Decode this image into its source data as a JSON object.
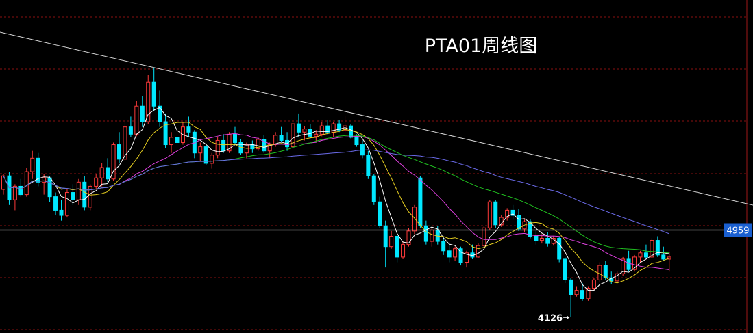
{
  "chart_data": {
    "type": "candlestick",
    "title": "PTA01周线图",
    "up_color": "#ff3a3a",
    "down_color": "#00e8ff",
    "ma_colors": [
      "#ffffff",
      "#e8d020",
      "#e040e0",
      "#20c020",
      "#6a6ae8"
    ],
    "ylim": [
      3970,
      7170
    ],
    "price_line": 4959,
    "low_label": 4126,
    "candles": [
      [
        5350,
        5500,
        5300,
        5480
      ],
      [
        5480,
        5520,
        5200,
        5250
      ],
      [
        5250,
        5400,
        5150,
        5380
      ],
      [
        5380,
        5450,
        5280,
        5300
      ],
      [
        5300,
        5560,
        5280,
        5520
      ],
      [
        5520,
        5720,
        5450,
        5650
      ],
      [
        5650,
        5700,
        5380,
        5420
      ],
      [
        5420,
        5500,
        5300,
        5460
      ],
      [
        5460,
        5480,
        5230,
        5280
      ],
      [
        5280,
        5320,
        5100,
        5150
      ],
      [
        5150,
        5250,
        5050,
        5100
      ],
      [
        5100,
        5350,
        5080,
        5320
      ],
      [
        5320,
        5400,
        5200,
        5250
      ],
      [
        5250,
        5450,
        5200,
        5420
      ],
      [
        5420,
        5480,
        5150,
        5180
      ],
      [
        5180,
        5400,
        5150,
        5380
      ],
      [
        5380,
        5500,
        5350,
        5460
      ],
      [
        5460,
        5600,
        5380,
        5560
      ],
      [
        5560,
        5650,
        5420,
        5450
      ],
      [
        5450,
        5800,
        5430,
        5780
      ],
      [
        5780,
        5900,
        5600,
        5640
      ],
      [
        5640,
        6000,
        5620,
        5950
      ],
      [
        5950,
        6050,
        5850,
        5880
      ],
      [
        5880,
        6200,
        5860,
        6150
      ],
      [
        6150,
        6250,
        5950,
        6000
      ],
      [
        6000,
        6450,
        5980,
        6380
      ],
      [
        6380,
        6520,
        6100,
        6150
      ],
      [
        6150,
        6300,
        5950,
        6000
      ],
      [
        6000,
        6080,
        5750,
        5780
      ],
      [
        5780,
        5900,
        5700,
        5850
      ],
      [
        5850,
        5950,
        5760,
        5800
      ],
      [
        5800,
        6000,
        5780,
        5950
      ],
      [
        5950,
        6050,
        5850,
        5900
      ],
      [
        5900,
        5920,
        5650,
        5700
      ],
      [
        5700,
        5800,
        5620,
        5760
      ],
      [
        5760,
        5780,
        5580,
        5600
      ],
      [
        5600,
        5700,
        5550,
        5680
      ],
      [
        5680,
        5850,
        5650,
        5820
      ],
      [
        5820,
        5880,
        5700,
        5720
      ],
      [
        5720,
        5900,
        5700,
        5880
      ],
      [
        5880,
        5950,
        5780,
        5800
      ],
      [
        5800,
        5830,
        5680,
        5700
      ],
      [
        5700,
        5800,
        5650,
        5780
      ],
      [
        5780,
        5820,
        5700,
        5740
      ],
      [
        5740,
        5850,
        5720,
        5830
      ],
      [
        5830,
        5870,
        5700,
        5720
      ],
      [
        5720,
        5800,
        5650,
        5780
      ],
      [
        5780,
        5900,
        5760,
        5870
      ],
      [
        5870,
        5950,
        5800,
        5820
      ],
      [
        5820,
        5900,
        5720,
        5760
      ],
      [
        5760,
        6050,
        5740,
        5980
      ],
      [
        5980,
        6080,
        5850,
        5900
      ],
      [
        5900,
        5960,
        5820,
        5930
      ],
      [
        5930,
        5980,
        5840,
        5860
      ],
      [
        5860,
        5920,
        5800,
        5880
      ],
      [
        5880,
        6000,
        5860,
        5960
      ],
      [
        5960,
        6020,
        5880,
        5900
      ],
      [
        5900,
        6000,
        5850,
        5980
      ],
      [
        5980,
        6020,
        5900,
        5920
      ],
      [
        5920,
        6060,
        5900,
        5960
      ],
      [
        5960,
        5980,
        5840,
        5850
      ],
      [
        5850,
        5880,
        5760,
        5780
      ],
      [
        5780,
        5820,
        5650,
        5680
      ],
      [
        5680,
        5720,
        5450,
        5480
      ],
      [
        5480,
        5500,
        5200,
        5230
      ],
      [
        5230,
        5280,
        4980,
        5000
      ],
      [
        5000,
        5050,
        4600,
        4800
      ],
      [
        4800,
        4950,
        4780,
        4900
      ],
      [
        4900,
        4920,
        4650,
        4700
      ],
      [
        4700,
        4850,
        4680,
        4820
      ],
      [
        4820,
        4980,
        4800,
        4950
      ],
      [
        4950,
        5200,
        4920,
        5180
      ],
      [
        5460,
        5480,
        4980,
        5000
      ],
      [
        5000,
        5050,
        4820,
        4850
      ],
      [
        4850,
        4980,
        4800,
        4960
      ],
      [
        4960,
        5000,
        4820,
        4850
      ],
      [
        4850,
        4880,
        4720,
        4760
      ],
      [
        4760,
        4820,
        4650,
        4700
      ],
      [
        4700,
        4800,
        4660,
        4780
      ],
      [
        4780,
        4800,
        4620,
        4650
      ],
      [
        4650,
        4760,
        4600,
        4740
      ],
      [
        4740,
        4820,
        4680,
        4700
      ],
      [
        4700,
        4830,
        4690,
        4810
      ],
      [
        4810,
        5000,
        4790,
        4980
      ],
      [
        4980,
        5250,
        4960,
        5230
      ],
      [
        5230,
        5250,
        4980,
        5010
      ],
      [
        5010,
        5100,
        4990,
        5080
      ],
      [
        5080,
        5170,
        5050,
        5150
      ],
      [
        5150,
        5200,
        5060,
        5100
      ],
      [
        5100,
        5160,
        4950,
        4970
      ],
      [
        4970,
        5060,
        4940,
        5040
      ],
      [
        5040,
        5060,
        4880,
        4900
      ],
      [
        4900,
        4950,
        4820,
        4860
      ],
      [
        4860,
        4920,
        4830,
        4880
      ],
      [
        4880,
        4940,
        4800,
        4830
      ],
      [
        4830,
        4900,
        4810,
        4880
      ],
      [
        4880,
        4900,
        4650,
        4680
      ],
      [
        4680,
        4700,
        4450,
        4480
      ],
      [
        4480,
        4500,
        4126,
        4340
      ],
      [
        4340,
        4420,
        4320,
        4380
      ],
      [
        4380,
        4450,
        4280,
        4300
      ],
      [
        4300,
        4420,
        4280,
        4400
      ],
      [
        4400,
        4500,
        4380,
        4480
      ],
      [
        4480,
        4650,
        4460,
        4620
      ],
      [
        4620,
        4660,
        4480,
        4500
      ],
      [
        4500,
        4560,
        4440,
        4470
      ],
      [
        4470,
        4560,
        4450,
        4540
      ],
      [
        4540,
        4700,
        4520,
        4680
      ],
      [
        4680,
        4760,
        4560,
        4580
      ],
      [
        4580,
        4720,
        4560,
        4700
      ],
      [
        4700,
        4760,
        4650,
        4740
      ],
      [
        4740,
        4820,
        4680,
        4700
      ],
      [
        4700,
        4880,
        4690,
        4860
      ],
      [
        4860,
        4900,
        4700,
        4720
      ],
      [
        4720,
        4800,
        4660,
        4680
      ],
      [
        4680,
        4750,
        4560,
        4700
      ]
    ]
  }
}
